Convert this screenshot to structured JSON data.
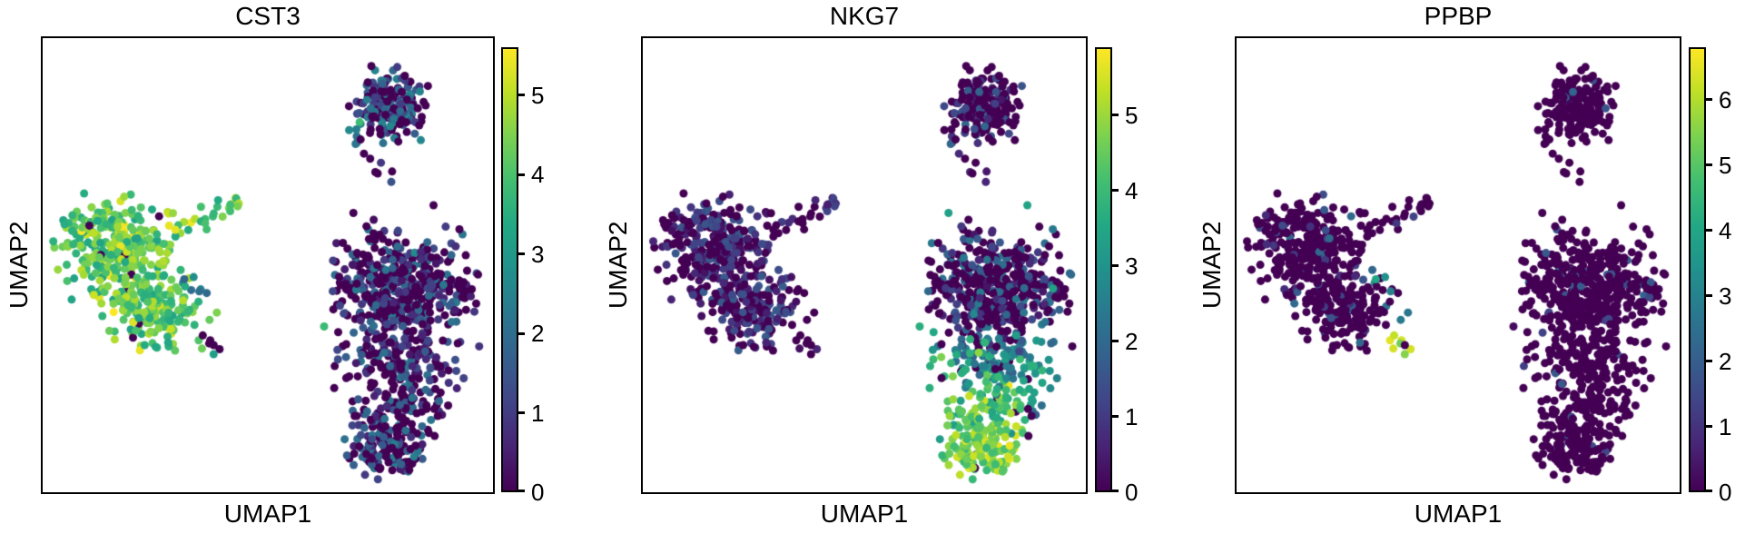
{
  "chart_data": {
    "type": "scatter",
    "subtype": "umap-feature-plot",
    "description": "Three-panel single-cell UMAP embedding (PBMC-style) colored by per-cell expression of three marker genes, viridis colormap, one colorbar per panel.",
    "axes": {
      "x": "UMAP1",
      "y": "UMAP2"
    },
    "genes": [
      {
        "name": "CST3",
        "vmax": 5.6,
        "colorbar_ticks": [
          0,
          1,
          2,
          3,
          4,
          5
        ]
      },
      {
        "name": "NKG7",
        "vmax": 5.9,
        "colorbar_ticks": [
          0,
          1,
          2,
          3,
          4,
          5
        ]
      },
      {
        "name": "PPBP",
        "vmax": 6.8,
        "colorbar_ticks": [
          0,
          1,
          2,
          3,
          4,
          5,
          6
        ]
      }
    ],
    "colormap": {
      "name": "viridis",
      "zero_color": "#440154",
      "max_color": "#fde725",
      "stops": [
        [
          0.0,
          68,
          1,
          84
        ],
        [
          0.1,
          72,
          36,
          117
        ],
        [
          0.2,
          65,
          68,
          135
        ],
        [
          0.3,
          53,
          96,
          141
        ],
        [
          0.4,
          42,
          120,
          142
        ],
        [
          0.5,
          33,
          145,
          140
        ],
        [
          0.6,
          34,
          168,
          132
        ],
        [
          0.7,
          66,
          190,
          113
        ],
        [
          0.8,
          122,
          209,
          81
        ],
        [
          0.9,
          189,
          223,
          38
        ],
        [
          1.0,
          253,
          231,
          37
        ]
      ]
    },
    "point_radius": 4.5,
    "random_seed": 42,
    "clusters": [
      {
        "id": "monocyte-dc-main",
        "kind": "blob",
        "cx": 0.16,
        "cy": 0.465,
        "sx": 0.062,
        "sy": 0.056,
        "clip": 2.2,
        "n": 310,
        "expr": {
          "CST3": {
            "z": 0.012,
            "lo": 3.2,
            "hi": 5.0,
            "hot": 0.08,
            "hHi": 5.6
          },
          "NKG7": {
            "z": 0.48,
            "lo": 0.2,
            "hi": 1.7,
            "hot": 0.01,
            "hHi": 3.6
          },
          "PPBP": {
            "z": 0.9,
            "lo": 0.7,
            "hi": 2.3
          }
        }
      },
      {
        "id": "monocyte-lower-lobe",
        "kind": "blob",
        "cx": 0.235,
        "cy": 0.6,
        "sx": 0.048,
        "sy": 0.042,
        "clip": 2.2,
        "n": 150,
        "expr": {
          "CST3": {
            "z": 0.012,
            "lo": 3.2,
            "hi": 5.0,
            "hot": 0.07,
            "hHi": 5.6
          },
          "NKG7": {
            "z": 0.48,
            "lo": 0.2,
            "hi": 1.7
          },
          "PPBP": {
            "z": 0.9,
            "lo": 0.7,
            "hi": 2.3
          }
        }
      },
      {
        "id": "dc-bridge-tail",
        "kind": "line",
        "x1": 0.295,
        "y1": 0.425,
        "x2": 0.445,
        "y2": 0.352,
        "jitter": 0.01,
        "n": 26,
        "expr": {
          "CST3": {
            "z": 0.0,
            "lo": 3.3,
            "hi": 5.0,
            "hot": 0.2,
            "hHi": 5.6
          },
          "NKG7": {
            "z": 0.5,
            "lo": 0.2,
            "hi": 1.3
          },
          "PPBP": {
            "z": 0.92,
            "lo": 0.7,
            "hi": 1.5
          }
        }
      },
      {
        "id": "notch-dots",
        "kind": "line",
        "x1": 0.315,
        "y1": 0.525,
        "x2": 0.355,
        "y2": 0.565,
        "jitter": 0.013,
        "n": 7,
        "expr": {
          "CST3": {
            "z": 0.1,
            "lo": 1.8,
            "hi": 3.4
          },
          "NKG7": {
            "z": 0.5,
            "lo": 0.2,
            "hi": 1.2
          },
          "PPBP": {
            "z": 0.3,
            "lo": 2.8,
            "hi": 4.3
          }
        }
      },
      {
        "id": "mono-right-scatter",
        "kind": "line",
        "x1": 0.3,
        "y1": 0.6,
        "x2": 0.375,
        "y2": 0.595,
        "jitter": 0.012,
        "n": 5,
        "expr": {
          "CST3": {
            "z": 0.0,
            "lo": 3.4,
            "hi": 4.6
          },
          "NKG7": {
            "z": 0.6,
            "lo": 0.2,
            "hi": 1.0
          },
          "PPBP": {
            "z": 0.7,
            "lo": 2.5,
            "hi": 3.8
          }
        }
      },
      {
        "id": "platelet-streak",
        "kind": "line",
        "x1": 0.358,
        "y1": 0.652,
        "x2": 0.383,
        "y2": 0.698,
        "jitter": 0.006,
        "n": 8,
        "expr": {
          "CST3": {
            "z": 0.4,
            "lo": 2.8,
            "hi": 4.4
          },
          "NKG7": {
            "z": 0.65,
            "lo": 0.2,
            "hi": 0.9
          },
          "PPBP": {
            "z": 0.12,
            "lo": 5.0,
            "hi": 6.6
          }
        }
      },
      {
        "id": "b-cell-cluster",
        "kind": "blob",
        "cx": 0.775,
        "cy": 0.148,
        "sx": 0.043,
        "sy": 0.038,
        "clip": 2.3,
        "n": 210,
        "expr": {
          "CST3": {
            "z": 0.42,
            "lo": 0.8,
            "hi": 2.6,
            "hot": 0.01,
            "hHi": 4.0
          },
          "NKG7": {
            "z": 0.68,
            "lo": 0.3,
            "hi": 2.0,
            "hot": 0.02,
            "hHi": 3.0
          },
          "PPBP": {
            "z": 0.97,
            "lo": 1.3,
            "hi": 2.2
          }
        }
      },
      {
        "id": "b-cell-stragglers",
        "kind": "line",
        "x1": 0.725,
        "y1": 0.24,
        "x2": 0.765,
        "y2": 0.295,
        "jitter": 0.016,
        "n": 7,
        "expr": {
          "CST3": {
            "z": 0.5,
            "lo": 0.4,
            "hi": 1.6
          },
          "NKG7": {
            "z": 0.7,
            "lo": 0.3,
            "hi": 1.2
          },
          "PPBP": {
            "z": 1.0,
            "lo": 0,
            "hi": 0
          }
        }
      },
      {
        "id": "t-cell-main",
        "kind": "blob",
        "cx": 0.8,
        "cy": 0.55,
        "sx": 0.077,
        "sy": 0.064,
        "clip": 2.2,
        "n": 460,
        "expr": {
          "CST3": {
            "z": 0.52,
            "lo": 0.3,
            "hi": 2.3,
            "hot": 0.02,
            "hHi": 3.2
          },
          "NKG7": {
            "z": 0.55,
            "lo": 0.3,
            "hi": 2.4,
            "hot": 0.03,
            "hHi": 3.8
          },
          "PPBP": {
            "z": 0.94,
            "lo": 1.2,
            "hi": 2.4
          }
        }
      },
      {
        "id": "nk-transition-upper",
        "kind": "blob",
        "cx": 0.79,
        "cy": 0.72,
        "sx": 0.068,
        "sy": 0.033,
        "clip": 2.2,
        "n": 130,
        "expr": {
          "CST3": {
            "z": 0.5,
            "lo": 0.3,
            "hi": 2.2
          },
          "NKG7": {
            "z": 0.12,
            "lo": 1.8,
            "hi": 4.0,
            "hot": 0.06,
            "hHi": 5.0
          },
          "PPBP": {
            "z": 0.96,
            "lo": 1.2,
            "hi": 2.0
          }
        }
      },
      {
        "id": "nk-transition-lower",
        "kind": "blob",
        "cx": 0.775,
        "cy": 0.815,
        "sx": 0.05,
        "sy": 0.032,
        "clip": 2.2,
        "n": 95,
        "expr": {
          "CST3": {
            "z": 0.5,
            "lo": 0.3,
            "hi": 2.2
          },
          "NKG7": {
            "z": 0.04,
            "lo": 3.2,
            "hi": 5.2,
            "hot": 0.1,
            "hHi": 5.9
          },
          "PPBP": {
            "z": 0.97,
            "lo": 1.2,
            "hi": 1.8
          }
        }
      },
      {
        "id": "nk-bottom-blob",
        "kind": "blob",
        "cx": 0.765,
        "cy": 0.905,
        "sx": 0.043,
        "sy": 0.031,
        "clip": 2.2,
        "n": 125,
        "expr": {
          "CST3": {
            "z": 0.45,
            "lo": 0.4,
            "hi": 2.4
          },
          "NKG7": {
            "z": 0.03,
            "lo": 3.8,
            "hi": 5.5,
            "hot": 0.12,
            "hHi": 5.9
          },
          "PPBP": {
            "z": 0.97,
            "lo": 1.0,
            "hi": 1.6
          }
        }
      },
      {
        "id": "tail-right-scatter",
        "kind": "blob",
        "cx": 0.875,
        "cy": 0.845,
        "sx": 0.024,
        "sy": 0.026,
        "clip": 2.0,
        "n": 9,
        "expr": {
          "CST3": {
            "z": 0.6,
            "lo": 0.3,
            "hi": 1.8
          },
          "NKG7": {
            "z": 0.3,
            "lo": 1.5,
            "hi": 3.5
          },
          "PPBP": {
            "z": 1.0,
            "lo": 0,
            "hi": 0
          }
        }
      },
      {
        "id": "isolated-dots",
        "kind": "fixed",
        "pts": [
          [
            0.69,
            0.385
          ],
          [
            0.735,
            0.4
          ],
          [
            0.744,
            0.298
          ],
          [
            0.868,
            0.368
          ],
          [
            0.625,
            0.635
          ]
        ],
        "expr": {
          "CST3": {
            "vals": [
              0,
              0.2,
              0,
              0,
              3.8
            ]
          },
          "NKG7": {
            "vals": [
              3.3,
              0,
              0,
              3.4,
              3.7
            ]
          },
          "PPBP": {
            "vals": [
              0,
              0,
              0,
              0,
              0.2
            ]
          }
        }
      }
    ]
  }
}
